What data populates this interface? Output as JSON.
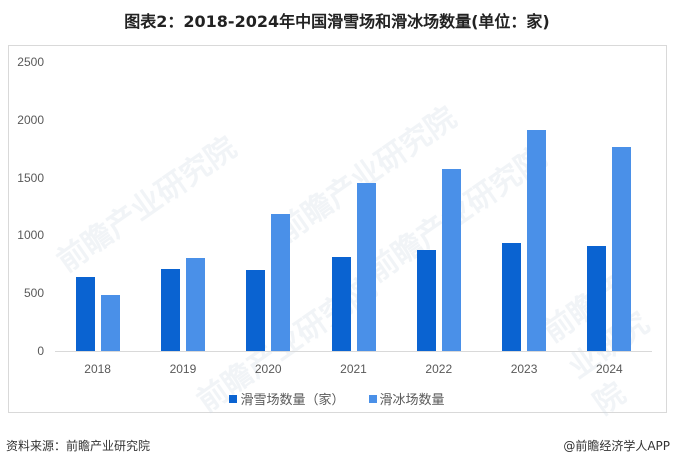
{
  "title": "图表2：2018-2024年中国滑雪场和滑冰场数量(单位：家)",
  "source": "资料来源：前瞻产业研究院",
  "credit": "@前瞻经济学人APP",
  "watermark": "前瞻产业研究院",
  "colors": {
    "ski": "#0a63d1",
    "ice": "#4a90e8"
  },
  "legend": [
    {
      "label": "滑雪场数量（家）",
      "color": "#0a63d1"
    },
    {
      "label": "滑冰场数量",
      "color": "#4a90e8"
    }
  ],
  "y_ticks": [
    "2500",
    "2000",
    "1500",
    "1000",
    "500",
    "0"
  ],
  "chart_data": {
    "type": "bar",
    "title": "图表2：2018-2024年中国滑雪场和滑冰场数量(单位：家)",
    "xlabel": "",
    "ylabel": "",
    "categories": [
      "2018",
      "2019",
      "2020",
      "2021",
      "2022",
      "2023",
      "2024"
    ],
    "series": [
      {
        "name": "滑雪场数量（家）",
        "color": "#0a63d1",
        "values": [
          640,
          710,
          700,
          813,
          874,
          934,
          908
        ]
      },
      {
        "name": "滑冰场数量",
        "color": "#4a90e8",
        "values": [
          485,
          805,
          1185,
          1453,
          1575,
          1912,
          1765
        ]
      }
    ],
    "ylim": [
      0,
      2500
    ],
    "yticks": [
      0,
      500,
      1000,
      1500,
      2000,
      2500
    ],
    "grid": false,
    "legend_position": "bottom"
  }
}
